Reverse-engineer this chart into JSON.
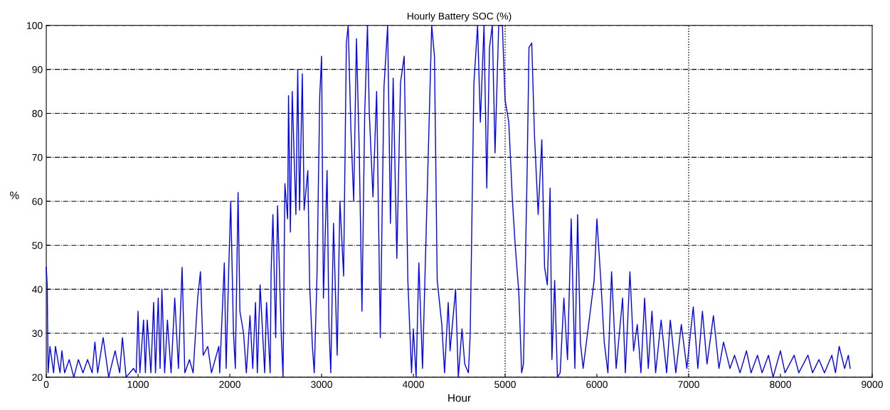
{
  "chart_data": {
    "type": "line",
    "title": "Hourly Battery SOC (%)",
    "xlabel": "Hour",
    "ylabel": "%",
    "xlim": [
      0,
      9000
    ],
    "xticks": [
      0,
      1000,
      2000,
      3000,
      4000,
      5000,
      6000,
      7000,
      8000,
      9000
    ],
    "ylim": [
      20,
      100
    ],
    "yticks": [
      20,
      30,
      40,
      50,
      60,
      70,
      80,
      90,
      100
    ],
    "grid": "y",
    "legend": false,
    "marker": "none",
    "line_style": "solid",
    "ref_lines": [
      {
        "axis": "x",
        "value": 5000,
        "label": null,
        "color": "#000000",
        "line_style": "dotted"
      },
      {
        "axis": "x",
        "value": 7000,
        "label": null,
        "color": "#000000",
        "line_style": "dotted"
      }
    ],
    "series": [
      {
        "color": "#0000ff",
        "x": [
          0,
          10,
          20,
          40,
          80,
          100,
          150,
          170,
          200,
          250,
          300,
          350,
          400,
          450,
          500,
          530,
          560,
          620,
          680,
          750,
          800,
          830,
          870,
          950,
          980,
          1000,
          1020,
          1060,
          1080,
          1100,
          1140,
          1170,
          1190,
          1220,
          1240,
          1260,
          1290,
          1320,
          1360,
          1400,
          1440,
          1480,
          1510,
          1560,
          1600,
          1650,
          1680,
          1710,
          1760,
          1800,
          1880,
          1890,
          1940,
          1960,
          1990,
          2010,
          2040,
          2060,
          2090,
          2110,
          2150,
          2180,
          2220,
          2250,
          2280,
          2300,
          2330,
          2380,
          2400,
          2440,
          2450,
          2470,
          2500,
          2520,
          2560,
          2580,
          2600,
          2630,
          2640,
          2660,
          2680,
          2720,
          2740,
          2760,
          2790,
          2810,
          2850,
          2870,
          2900,
          2920,
          2950,
          2980,
          3000,
          3020,
          3060,
          3080,
          3100,
          3130,
          3170,
          3200,
          3240,
          3270,
          3290,
          3320,
          3350,
          3380,
          3410,
          3440,
          3470,
          3500,
          3520,
          3560,
          3600,
          3640,
          3680,
          3720,
          3750,
          3780,
          3820,
          3860,
          3900,
          3940,
          3980,
          4000,
          4030,
          4060,
          4100,
          4150,
          4200,
          4230,
          4260,
          4310,
          4340,
          4380,
          4400,
          4460,
          4490,
          4530,
          4560,
          4600,
          4620,
          4660,
          4700,
          4730,
          4770,
          4800,
          4830,
          4860,
          4890,
          4930,
          4970,
          5000,
          5040,
          5080,
          5110,
          5150,
          5180,
          5200,
          5240,
          5260,
          5290,
          5320,
          5360,
          5400,
          5430,
          5460,
          5490,
          5510,
          5540,
          5570,
          5600,
          5640,
          5680,
          5720,
          5760,
          5790,
          5820,
          5850,
          5940,
          5970,
          6000,
          6040,
          6080,
          6120,
          6160,
          6210,
          6280,
          6310,
          6360,
          6400,
          6440,
          6480,
          6520,
          6560,
          6600,
          6640,
          6700,
          6760,
          6800,
          6860,
          6920,
          6980,
          7050,
          7100,
          7150,
          7200,
          7270,
          7330,
          7380,
          7450,
          7500,
          7560,
          7630,
          7680,
          7750,
          7800,
          7870,
          7920,
          8000,
          8050,
          8150,
          8200,
          8300,
          8350,
          8420,
          8480,
          8560,
          8600,
          8640,
          8700,
          8740,
          8760
        ],
        "values": [
          45,
          41,
          21,
          27,
          21,
          27,
          21,
          26,
          21,
          24,
          20,
          24,
          21,
          24,
          21,
          28,
          21,
          29,
          20,
          26,
          21,
          29,
          20,
          22,
          21,
          35,
          21,
          33,
          21,
          33,
          21,
          37,
          21,
          38,
          22,
          40,
          21,
          33,
          21,
          38,
          22,
          45,
          21,
          24,
          21,
          38,
          44,
          25,
          27,
          21,
          27,
          21,
          46,
          22,
          46,
          60,
          30,
          22,
          62,
          35,
          30,
          21,
          34,
          22,
          37,
          21,
          41,
          21,
          37,
          21,
          44,
          57,
          29,
          59,
          30,
          20,
          64,
          56,
          84,
          53,
          85,
          57,
          90,
          58,
          89,
          58,
          67,
          41,
          27,
          21,
          43,
          84,
          93,
          38,
          67,
          32,
          21,
          55,
          25,
          60,
          43,
          96,
          100,
          76,
          60,
          97,
          72,
          35,
          80,
          100,
          80,
          61,
          85,
          29,
          86,
          100,
          55,
          88,
          47,
          87,
          93,
          42,
          21,
          31,
          20,
          46,
          22,
          61,
          100,
          93,
          42,
          32,
          21,
          37,
          26,
          40,
          20,
          31,
          23,
          21,
          30,
          87,
          100,
          78,
          100,
          63,
          95,
          100,
          71,
          100,
          100,
          83,
          78,
          60,
          50,
          39,
          21,
          23,
          67,
          95,
          96,
          75,
          57,
          74,
          45,
          41,
          63,
          24,
          42,
          20,
          21,
          38,
          24,
          56,
          22,
          57,
          28,
          22,
          37,
          42,
          56,
          43,
          28,
          21,
          44,
          22,
          38,
          21,
          44,
          26,
          32,
          21,
          38,
          22,
          35,
          21,
          33,
          21,
          33,
          21,
          32,
          22,
          36,
          22,
          35,
          23,
          34,
          22,
          28,
          22,
          25,
          21,
          26,
          21,
          25,
          21,
          25,
          20,
          26,
          21,
          25,
          21,
          25,
          21,
          24,
          21,
          25,
          21,
          27,
          22,
          25,
          22
        ]
      }
    ]
  }
}
